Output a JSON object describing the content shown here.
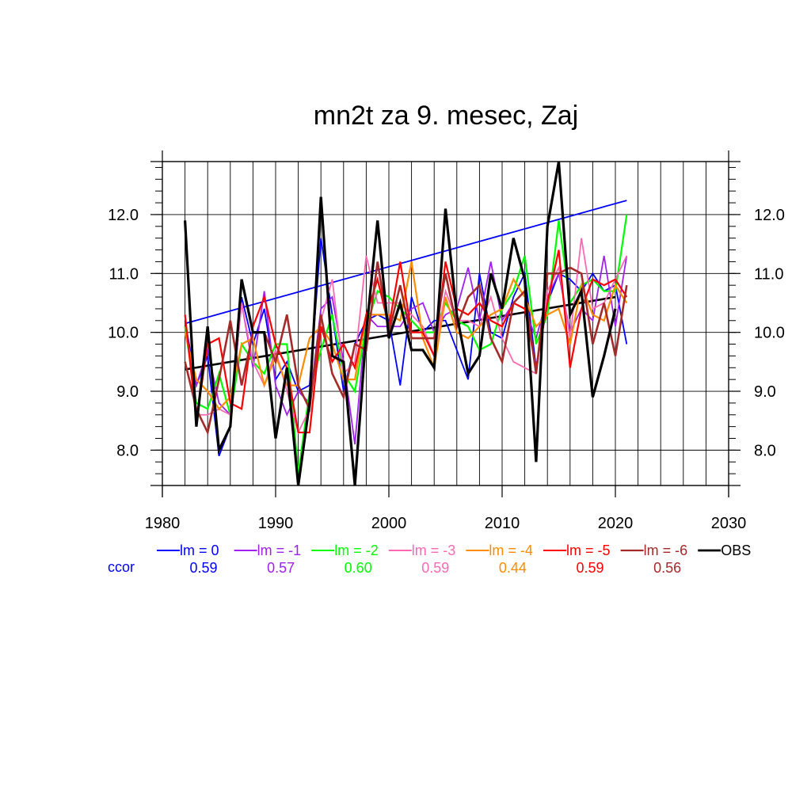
{
  "chart_data": {
    "type": "line",
    "title": "mn2t za 9. mesec, Zaj",
    "xlabel": "",
    "ylabel": "",
    "xlim": [
      1980,
      2030
    ],
    "ylim": [
      7.4,
      12.9
    ],
    "x_ticks": [
      1980,
      1990,
      2000,
      2010,
      2020,
      2030
    ],
    "x_tick_labels": [
      "1980",
      "1990",
      "2000",
      "2010",
      "2020",
      "2030"
    ],
    "y_ticks": [
      8.0,
      9.0,
      10.0,
      11.0,
      12.0
    ],
    "y_tick_labels": [
      "8.0",
      "9.0",
      "10.0",
      "11.0",
      "12.0"
    ],
    "grid": true,
    "legend_placement": "bottom",
    "ccor_label": "ccor",
    "ccor_color": "#0000ff",
    "x": [
      1982,
      1983,
      1984,
      1985,
      1986,
      1987,
      1988,
      1989,
      1990,
      1991,
      1992,
      1993,
      1994,
      1995,
      1996,
      1997,
      1998,
      1999,
      2000,
      2001,
      2002,
      2003,
      2004,
      2005,
      2006,
      2007,
      2008,
      2009,
      2010,
      2011,
      2012,
      2013,
      2014,
      2015,
      2016,
      2017,
      2018,
      2019,
      2020,
      2021
    ],
    "series": [
      {
        "name": "lm = 0",
        "color": "#0000ff",
        "width": 1.8,
        "ccor": "0.59",
        "values": [
          10.2,
          9.1,
          9.6,
          7.9,
          8.4,
          10.6,
          9.8,
          10.4,
          9.2,
          9.5,
          9.0,
          9.1,
          11.6,
          10.3,
          9.0,
          9.8,
          10.2,
          10.3,
          10.2,
          9.1,
          10.6,
          10.0,
          10.2,
          10.2,
          9.7,
          9.2,
          11.0,
          10.0,
          9.9,
          10.6,
          11.0,
          9.4,
          10.5,
          11.0,
          10.9,
          10.7,
          11.0,
          10.7,
          10.8,
          9.8
        ]
      },
      {
        "name": "lm = -1",
        "color": "#a020f0",
        "width": 1.8,
        "ccor": "0.57",
        "values": [
          10.0,
          9.1,
          9.7,
          8.8,
          8.6,
          10.5,
          9.4,
          10.7,
          9.1,
          8.6,
          9.0,
          8.8,
          10.4,
          10.6,
          9.5,
          8.1,
          10.3,
          10.1,
          10.1,
          10.1,
          10.4,
          10.5,
          10.0,
          10.3,
          10.4,
          11.1,
          10.2,
          11.2,
          10.2,
          10.5,
          10.4,
          9.9,
          10.6,
          11.0,
          10.0,
          10.4,
          10.2,
          11.3,
          10.1,
          11.3
        ]
      },
      {
        "name": "lm = -2",
        "color": "#00ff00",
        "width": 2.2,
        "ccor": "0.60",
        "values": [
          10.1,
          8.8,
          8.7,
          9.3,
          8.6,
          9.8,
          9.5,
          9.3,
          9.8,
          9.8,
          7.6,
          9.0,
          9.7,
          10.3,
          9.3,
          9.0,
          10.1,
          10.7,
          10.6,
          10.4,
          10.2,
          10.0,
          10.0,
          10.5,
          10.2,
          10.1,
          9.7,
          9.8,
          10.4,
          10.7,
          11.3,
          9.8,
          10.3,
          11.9,
          10.5,
          10.8,
          10.9,
          10.7,
          10.7,
          12.0
        ]
      },
      {
        "name": "lm = -3",
        "color": "#ff69b4",
        "width": 1.8,
        "ccor": "0.59",
        "values": [
          10.3,
          8.6,
          8.6,
          8.7,
          8.6,
          10.5,
          9.5,
          9.1,
          9.7,
          9.0,
          8.3,
          8.7,
          10.2,
          10.9,
          9.3,
          9.5,
          11.3,
          10.5,
          10.5,
          10.5,
          10.3,
          10.1,
          9.6,
          10.7,
          10.2,
          10.2,
          10.1,
          10.6,
          9.9,
          9.5,
          9.4,
          9.3,
          10.7,
          11.1,
          9.9,
          11.6,
          10.4,
          10.5,
          10.9,
          11.3
        ]
      },
      {
        "name": "lm = -4",
        "color": "#ff8c00",
        "width": 2.2,
        "ccor": "0.44",
        "values": [
          10.0,
          9.2,
          9.0,
          8.7,
          8.9,
          9.8,
          9.9,
          9.1,
          9.6,
          9.1,
          9.1,
          9.9,
          10.1,
          9.8,
          9.2,
          9.2,
          10.3,
          10.3,
          10.3,
          10.2,
          11.2,
          9.9,
          9.4,
          10.6,
          10.0,
          9.9,
          10.1,
          10.3,
          10.4,
          10.9,
          10.6,
          10.1,
          10.3,
          10.4,
          9.8,
          10.8,
          10.3,
          10.2,
          10.8,
          10.5
        ]
      },
      {
        "name": "lm = -5",
        "color": "#ff0000",
        "width": 2.2,
        "ccor": "0.59",
        "values": [
          10.3,
          8.5,
          9.8,
          9.9,
          8.8,
          8.7,
          10.1,
          10.6,
          9.8,
          9.4,
          8.3,
          8.3,
          10.1,
          9.5,
          9.8,
          9.4,
          10.3,
          10.9,
          10.1,
          11.2,
          10.0,
          10.0,
          9.6,
          11.2,
          10.4,
          10.3,
          10.5,
          10.2,
          10.1,
          10.5,
          10.4,
          9.4,
          10.5,
          11.4,
          9.4,
          10.4,
          10.9,
          10.8,
          10.9,
          10.6
        ]
      },
      {
        "name": "lm = -6",
        "color": "#a52a2a",
        "width": 2.6,
        "ccor": "0.56",
        "values": [
          9.5,
          8.7,
          8.3,
          9.2,
          10.2,
          9.1,
          10.0,
          10.0,
          9.5,
          10.3,
          9.1,
          8.7,
          10.3,
          9.3,
          8.9,
          9.8,
          9.7,
          11.2,
          10.0,
          10.8,
          9.9,
          9.9,
          9.9,
          11.0,
          10.1,
          10.6,
          10.8,
          9.9,
          9.5,
          10.5,
          10.7,
          9.3,
          11.0,
          11.0,
          11.1,
          11.0,
          9.8,
          10.5,
          9.6,
          10.8
        ]
      },
      {
        "name": "OBS",
        "color": "#000000",
        "width": 3.2,
        "ccor": "",
        "values": [
          11.9,
          8.4,
          10.1,
          8.0,
          8.4,
          10.9,
          10.0,
          10.0,
          8.2,
          9.4,
          7.4,
          8.8,
          12.3,
          9.6,
          9.5,
          7.4,
          10.0,
          11.9,
          9.9,
          10.5,
          9.7,
          9.7,
          9.4,
          12.1,
          10.3,
          9.3,
          9.6,
          11.0,
          10.4,
          11.6,
          10.9,
          7.8,
          11.8,
          12.9,
          10.3,
          10.7,
          8.9,
          9.6,
          10.4,
          null
        ]
      }
    ],
    "trend_lines": [
      {
        "name": "lm = 0 trend",
        "color": "#0000ff",
        "width": 1.8,
        "x": [
          1982,
          2021
        ],
        "y": [
          10.15,
          12.24
        ]
      },
      {
        "name": "OBS trend",
        "color": "#000000",
        "width": 2.6,
        "x": [
          1982,
          2020
        ],
        "y": [
          9.37,
          10.6
        ]
      }
    ]
  }
}
